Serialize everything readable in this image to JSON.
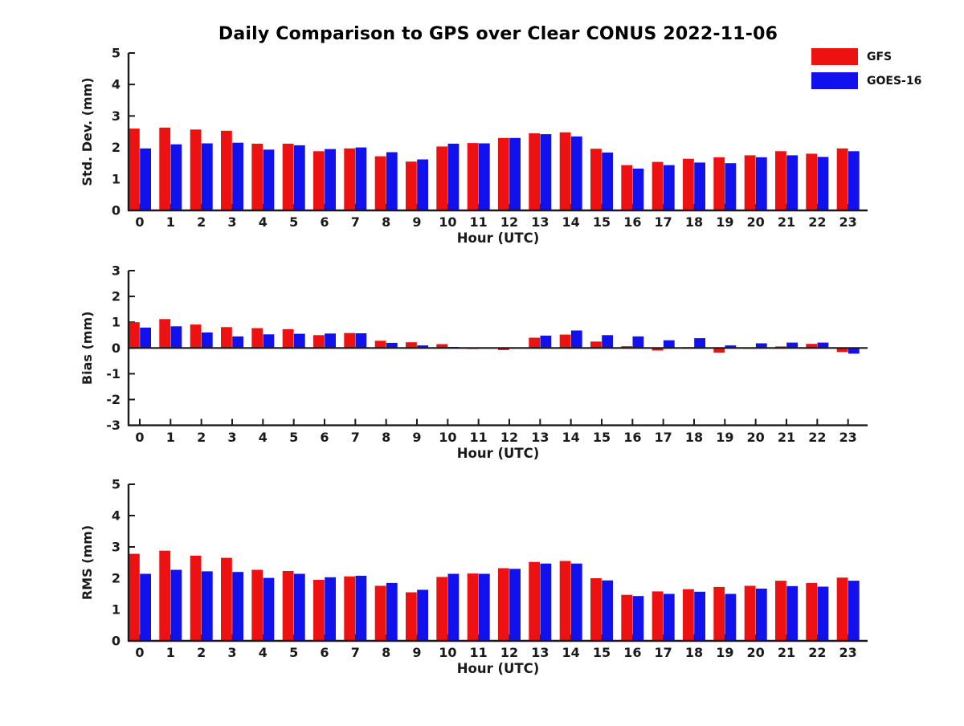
{
  "title": "Daily Comparison to GPS over Clear CONUS 2022-11-06",
  "legend": {
    "items": [
      {
        "label": "GFS",
        "color": "#ee1111"
      },
      {
        "label": "GOES-16",
        "color": "#1111ee"
      }
    ]
  },
  "colors": {
    "gfs": "#ee1111",
    "goes16": "#1111ee",
    "axis": "#1a1a1a"
  },
  "chart_data": [
    {
      "type": "bar",
      "name": "stddev",
      "title": "",
      "xlabel": "Hour (UTC)",
      "ylabel": "Std. Dev. (mm)",
      "ylim": [
        0,
        5
      ],
      "yticks": [
        0,
        1,
        2,
        3,
        4,
        5
      ],
      "grid": false,
      "legend_position": "top-right",
      "categories": [
        "0",
        "1",
        "2",
        "3",
        "4",
        "5",
        "6",
        "7",
        "8",
        "9",
        "10",
        "11",
        "12",
        "13",
        "14",
        "15",
        "16",
        "17",
        "18",
        "19",
        "20",
        "21",
        "22",
        "23"
      ],
      "series": [
        {
          "name": "GFS",
          "color": "#ee1111",
          "values": [
            2.6,
            2.63,
            2.57,
            2.53,
            2.12,
            2.12,
            1.88,
            1.97,
            1.72,
            1.55,
            2.03,
            2.14,
            2.3,
            2.45,
            2.48,
            1.96,
            1.44,
            1.54,
            1.64,
            1.69,
            1.75,
            1.88,
            1.8,
            1.97
          ]
        },
        {
          "name": "GOES-16",
          "color": "#1111ee",
          "values": [
            1.97,
            2.1,
            2.13,
            2.15,
            1.93,
            2.07,
            1.95,
            2.0,
            1.85,
            1.62,
            2.12,
            2.13,
            2.3,
            2.42,
            2.35,
            1.84,
            1.33,
            1.44,
            1.52,
            1.5,
            1.69,
            1.75,
            1.7,
            1.88
          ]
        }
      ]
    },
    {
      "type": "bar",
      "name": "bias",
      "title": "",
      "xlabel": "Hour (UTC)",
      "ylabel": "Bias (mm)",
      "ylim": [
        -3,
        3
      ],
      "yticks": [
        3,
        2,
        1,
        0,
        -1,
        -2,
        -3
      ],
      "grid": false,
      "categories": [
        "0",
        "1",
        "2",
        "3",
        "4",
        "5",
        "6",
        "7",
        "8",
        "9",
        "10",
        "11",
        "12",
        "13",
        "14",
        "15",
        "16",
        "17",
        "18",
        "19",
        "20",
        "21",
        "22",
        "23"
      ],
      "series": [
        {
          "name": "GFS",
          "color": "#ee1111",
          "values": [
            1.0,
            1.12,
            0.91,
            0.81,
            0.77,
            0.73,
            0.5,
            0.58,
            0.28,
            0.22,
            0.15,
            -0.04,
            -0.08,
            0.4,
            0.52,
            0.25,
            0.07,
            -0.1,
            0.03,
            -0.18,
            -0.03,
            0.06,
            0.16,
            -0.16
          ]
        },
        {
          "name": "GOES-16",
          "color": "#1111ee",
          "values": [
            0.79,
            0.84,
            0.6,
            0.45,
            0.53,
            0.55,
            0.56,
            0.57,
            0.2,
            0.1,
            0.04,
            0.0,
            0.0,
            0.48,
            0.68,
            0.5,
            0.45,
            0.3,
            0.38,
            0.1,
            0.18,
            0.21,
            0.21,
            -0.22
          ]
        }
      ]
    },
    {
      "type": "bar",
      "name": "rms",
      "title": "",
      "xlabel": "Hour (UTC)",
      "ylabel": "RMS (mm)",
      "ylim": [
        0,
        5
      ],
      "yticks": [
        0,
        1,
        2,
        3,
        4,
        5
      ],
      "grid": false,
      "categories": [
        "0",
        "1",
        "2",
        "3",
        "4",
        "5",
        "6",
        "7",
        "8",
        "9",
        "10",
        "11",
        "12",
        "13",
        "14",
        "15",
        "16",
        "17",
        "18",
        "19",
        "20",
        "21",
        "22",
        "23"
      ],
      "series": [
        {
          "name": "GFS",
          "color": "#ee1111",
          "values": [
            2.78,
            2.88,
            2.72,
            2.65,
            2.27,
            2.23,
            1.95,
            2.06,
            1.76,
            1.55,
            2.04,
            2.15,
            2.32,
            2.52,
            2.55,
            2.0,
            1.47,
            1.58,
            1.65,
            1.72,
            1.76,
            1.92,
            1.85,
            2.02
          ]
        },
        {
          "name": "GOES-16",
          "color": "#1111ee",
          "values": [
            2.14,
            2.27,
            2.22,
            2.2,
            2.01,
            2.14,
            2.03,
            2.08,
            1.85,
            1.63,
            2.14,
            2.14,
            2.3,
            2.47,
            2.47,
            1.93,
            1.43,
            1.5,
            1.57,
            1.5,
            1.67,
            1.75,
            1.73,
            1.92
          ]
        }
      ]
    }
  ]
}
